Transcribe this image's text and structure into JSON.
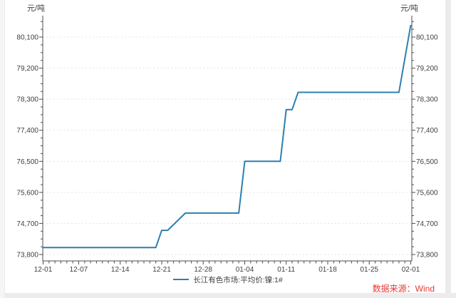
{
  "chart_data": {
    "type": "line",
    "title": "",
    "unit_left": "元/吨",
    "unit_right": "元/吨",
    "grid": "horizontal-dashed",
    "legend_position": "bottom-center",
    "x_axis": {
      "tick_labels": [
        "12-01",
        "12-07",
        "12-14",
        "12-21",
        "12-28",
        "01-04",
        "01-11",
        "01-18",
        "01-25",
        "02-01"
      ]
    },
    "y_axis": {
      "ticks": [
        73800,
        74700,
        75600,
        76500,
        77400,
        78300,
        79200,
        80100
      ],
      "tick_labels": [
        "73,800",
        "74,700",
        "75,600",
        "76,500",
        "77,400",
        "78,300",
        "79,200",
        "80,100"
      ],
      "minor_tick_step": 225
    },
    "series": [
      {
        "name": "长江有色市场:平均价:镍:1#",
        "color": "#2e7fb0",
        "points": [
          [
            "12-01",
            74000
          ],
          [
            "12-20",
            74000
          ],
          [
            "12-21",
            74500
          ],
          [
            "12-22",
            74500
          ],
          [
            "12-25",
            75000
          ],
          [
            "01-03",
            75000
          ],
          [
            "01-04",
            76500
          ],
          [
            "01-10",
            76500
          ],
          [
            "01-11",
            78000
          ],
          [
            "01-12",
            78000
          ],
          [
            "01-13",
            78500
          ],
          [
            "01-30",
            78500
          ],
          [
            "02-01",
            80450
          ]
        ]
      }
    ]
  },
  "source_label": "数据来源：Wind",
  "colors": {
    "line": "#2e7fb0",
    "grid": "#e3e3e3",
    "axis": "#4d4d4d",
    "tick_text": "#3f3f3f",
    "source_text": "#e53935"
  }
}
